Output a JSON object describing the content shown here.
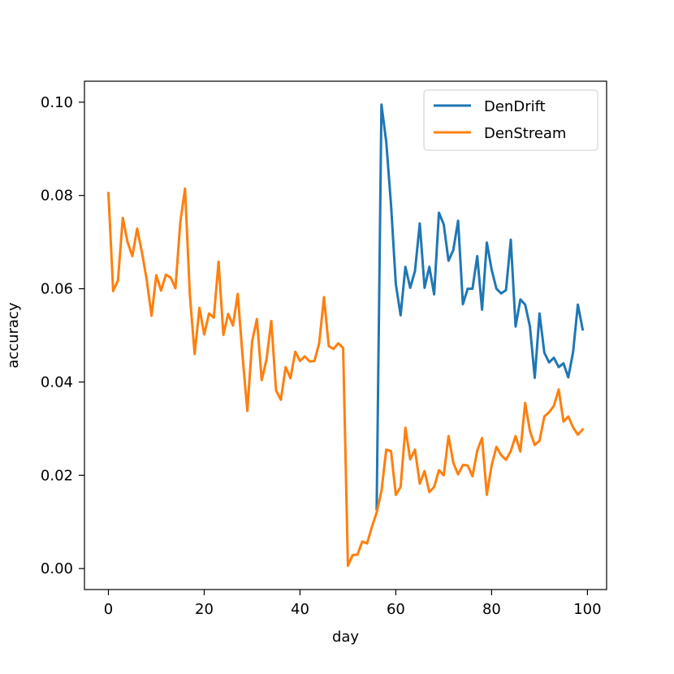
{
  "chart_data": {
    "type": "line",
    "title": "",
    "xlabel": "day",
    "ylabel": "accuracy",
    "xlim": [
      -5,
      104
    ],
    "ylim": [
      -0.0045,
      0.1045
    ],
    "xticks": [
      0,
      20,
      40,
      60,
      80,
      100
    ],
    "xtick_labels": [
      "0",
      "20",
      "40",
      "60",
      "80",
      "100"
    ],
    "yticks": [
      0.0,
      0.02,
      0.04,
      0.06,
      0.08,
      0.1
    ],
    "ytick_labels": [
      "0.00",
      "0.02",
      "0.04",
      "0.06",
      "0.08",
      "0.10"
    ],
    "grid": false,
    "legend_position": "top-right",
    "series": [
      {
        "name": "DenDrift",
        "color": "#1f77b4",
        "x": [
          56,
          57,
          58,
          59,
          60,
          61,
          62,
          63,
          64,
          65,
          66,
          67,
          68,
          69,
          70,
          71,
          72,
          73,
          74,
          75,
          76,
          77,
          78,
          79,
          80,
          81,
          82,
          83,
          84,
          85,
          86,
          87,
          88,
          89,
          90,
          91,
          92,
          93,
          94,
          95,
          96,
          97,
          98,
          99
        ],
        "values": [
          0.0128,
          0.0995,
          0.0915,
          0.078,
          0.061,
          0.0543,
          0.0647,
          0.0602,
          0.0638,
          0.074,
          0.0602,
          0.0647,
          0.0588,
          0.0763,
          0.0738,
          0.066,
          0.0683,
          0.0746,
          0.0567,
          0.06,
          0.06,
          0.067,
          0.0555,
          0.0699,
          0.0641,
          0.06,
          0.059,
          0.0597,
          0.0705,
          0.0519,
          0.0577,
          0.0566,
          0.0519,
          0.0409,
          0.0547,
          0.0463,
          0.0442,
          0.0452,
          0.0432,
          0.044,
          0.041,
          0.0464,
          0.0566,
          0.0513
        ]
      },
      {
        "name": "DenStream",
        "color": "#ff7f0e",
        "x": [
          0,
          1,
          2,
          3,
          4,
          5,
          6,
          7,
          8,
          9,
          10,
          11,
          12,
          13,
          14,
          15,
          16,
          17,
          18,
          19,
          20,
          21,
          22,
          23,
          24,
          25,
          26,
          27,
          28,
          29,
          30,
          31,
          32,
          33,
          34,
          35,
          36,
          37,
          38,
          39,
          40,
          41,
          42,
          43,
          44,
          45,
          46,
          47,
          48,
          49,
          50,
          51,
          52,
          53,
          54,
          55,
          56,
          57,
          58,
          59,
          60,
          61,
          62,
          63,
          64,
          65,
          66,
          67,
          68,
          69,
          70,
          71,
          72,
          73,
          74,
          75,
          76,
          77,
          78,
          79,
          80,
          81,
          82,
          83,
          84,
          85,
          86,
          87,
          88,
          89,
          90,
          91,
          92,
          93,
          94,
          95,
          96,
          97,
          98,
          99
        ],
        "values": [
          0.0805,
          0.0595,
          0.0618,
          0.0752,
          0.07,
          0.067,
          0.0729,
          0.0678,
          0.0619,
          0.0542,
          0.0629,
          0.0596,
          0.063,
          0.0624,
          0.0601,
          0.0742,
          0.0815,
          0.0587,
          0.046,
          0.0559,
          0.0502,
          0.0547,
          0.0538,
          0.0658,
          0.0501,
          0.0546,
          0.0521,
          0.0589,
          0.0456,
          0.0338,
          0.0487,
          0.0535,
          0.0404,
          0.0448,
          0.0531,
          0.0382,
          0.0362,
          0.0432,
          0.0408,
          0.0465,
          0.0445,
          0.0455,
          0.0444,
          0.0445,
          0.0483,
          0.0582,
          0.0477,
          0.0471,
          0.0483,
          0.0473,
          0.0006,
          0.0029,
          0.003,
          0.0058,
          0.0054,
          0.0089,
          0.012,
          0.0166,
          0.0255,
          0.0252,
          0.0158,
          0.0175,
          0.0302,
          0.0234,
          0.0255,
          0.0182,
          0.0209,
          0.0164,
          0.0175,
          0.0211,
          0.02,
          0.0284,
          0.0227,
          0.0202,
          0.0222,
          0.0221,
          0.0198,
          0.0253,
          0.028,
          0.0158,
          0.0221,
          0.0261,
          0.0243,
          0.0233,
          0.0252,
          0.0284,
          0.0251,
          0.0355,
          0.0295,
          0.0265,
          0.0274,
          0.0326,
          0.0335,
          0.0349,
          0.0384,
          0.0315,
          0.0326,
          0.0303,
          0.0287,
          0.0298
        ]
      }
    ]
  }
}
